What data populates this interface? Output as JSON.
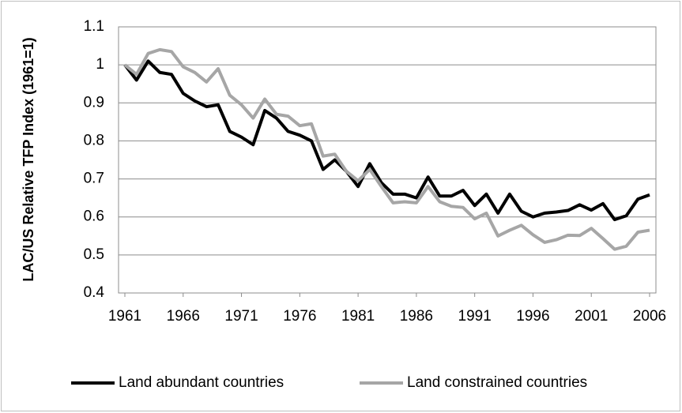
{
  "chart_data": {
    "type": "line",
    "y_label": "LAC/US Relative TFP Index (1961=1)",
    "x": [
      1961,
      1962,
      1963,
      1964,
      1965,
      1966,
      1967,
      1968,
      1969,
      1970,
      1971,
      1972,
      1973,
      1974,
      1975,
      1976,
      1977,
      1978,
      1979,
      1980,
      1981,
      1982,
      1983,
      1984,
      1985,
      1986,
      1987,
      1988,
      1989,
      1990,
      1991,
      1992,
      1993,
      1994,
      1995,
      1996,
      1997,
      1998,
      1999,
      2000,
      2001,
      2002,
      2003,
      2004,
      2005,
      2006
    ],
    "series": [
      {
        "name": "Land abundant countries",
        "color": "#000000",
        "values": [
          1.0,
          0.96,
          1.01,
          0.98,
          0.975,
          0.925,
          0.905,
          0.89,
          0.895,
          0.825,
          0.81,
          0.79,
          0.88,
          0.86,
          0.825,
          0.815,
          0.8,
          0.725,
          0.75,
          0.72,
          0.68,
          0.74,
          0.69,
          0.66,
          0.66,
          0.65,
          0.705,
          0.655,
          0.655,
          0.67,
          0.63,
          0.66,
          0.61,
          0.66,
          0.615,
          0.6,
          0.61,
          0.613,
          0.617,
          0.632,
          0.618,
          0.635,
          0.593,
          0.603,
          0.647,
          0.658
        ]
      },
      {
        "name": "Land constrained countries",
        "color": "#a6a6a6",
        "values": [
          1.0,
          0.975,
          1.03,
          1.04,
          1.035,
          0.995,
          0.98,
          0.955,
          0.99,
          0.92,
          0.895,
          0.86,
          0.91,
          0.87,
          0.865,
          0.84,
          0.845,
          0.76,
          0.765,
          0.72,
          0.695,
          0.725,
          0.68,
          0.637,
          0.64,
          0.637,
          0.68,
          0.64,
          0.628,
          0.625,
          0.595,
          0.61,
          0.55,
          0.565,
          0.578,
          0.553,
          0.533,
          0.54,
          0.552,
          0.551,
          0.57,
          0.543,
          0.515,
          0.523,
          0.56,
          0.565
        ]
      }
    ],
    "xlim": [
      1961,
      2006
    ],
    "xticks": [
      1961,
      1966,
      1971,
      1976,
      1981,
      1986,
      1991,
      1996,
      2001,
      2006
    ],
    "ylim": [
      0.4,
      1.1
    ],
    "yticks": [
      0.4,
      0.5,
      0.6,
      0.7,
      0.8,
      0.9,
      1,
      1.1
    ],
    "grid": true,
    "legend": "bottom"
  }
}
